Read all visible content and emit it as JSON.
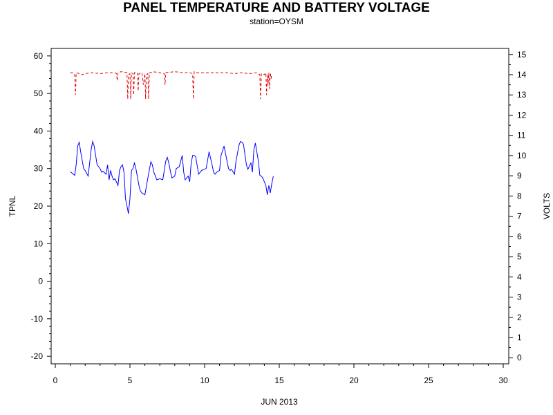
{
  "chart_data": {
    "type": "line",
    "title": "PANEL TEMPERATURE AND BATTERY VOLTAGE",
    "subtitle": "station=OYSM",
    "xlabel": "JUN 2013",
    "ylabel": "TPNL",
    "y2label": "VOLTS",
    "xlim": [
      0,
      30
    ],
    "ylim": [
      -22,
      62
    ],
    "y2lim": [
      -0.3,
      15.3
    ],
    "xticks": [
      "0",
      "5",
      "10",
      "15",
      "20",
      "25",
      "30"
    ],
    "yticks": [
      "-20",
      "-10",
      "0",
      "10",
      "20",
      "30",
      "40",
      "50",
      "60"
    ],
    "y2ticks": [
      "0",
      "1",
      "2",
      "3",
      "4",
      "5",
      "6",
      "7",
      "8",
      "9",
      "10",
      "11",
      "12",
      "13",
      "14",
      "15"
    ],
    "grid": false,
    "legend": "none",
    "series": [
      {
        "axis": "left",
        "color": "#0000ff",
        "dash": "solid",
        "x": [
          1.0,
          1.3,
          1.4,
          1.5,
          1.6,
          1.7,
          1.9,
          2.0,
          2.2,
          2.3,
          2.4,
          2.5,
          2.6,
          2.8,
          2.9,
          3.0,
          3.1,
          3.2,
          3.4,
          3.5,
          3.6,
          3.7,
          3.8,
          3.9,
          4.0,
          4.2,
          4.3,
          4.4,
          4.5,
          4.6,
          4.7,
          4.8,
          4.9,
          5.0,
          5.1,
          5.2,
          5.3,
          5.4,
          5.6,
          5.7,
          5.8,
          6.0,
          6.2,
          6.4,
          6.5,
          6.6,
          6.8,
          7.0,
          7.2,
          7.4,
          7.5,
          7.6,
          7.8,
          8.0,
          8.1,
          8.3,
          8.5,
          8.6,
          8.7,
          8.9,
          9.0,
          9.1,
          9.2,
          9.3,
          9.4,
          9.6,
          9.7,
          9.8,
          10.1,
          10.3,
          10.5,
          10.6,
          10.7,
          10.8,
          11.0,
          11.1,
          11.3,
          11.5,
          11.6,
          11.7,
          11.8,
          12.0,
          12.1,
          12.3,
          12.4,
          12.5,
          12.6,
          12.8,
          12.9,
          13.1,
          13.2,
          13.3,
          13.4,
          13.6,
          13.7,
          13.8,
          13.9,
          14.1,
          14.2,
          14.3,
          14.4,
          14.5,
          14.6
        ],
        "values": [
          29.2,
          28.2,
          31.0,
          36.0,
          37.0,
          34.5,
          30.0,
          29.5,
          28.0,
          31.5,
          35.0,
          37.2,
          36.0,
          31.0,
          30.5,
          30.0,
          29.0,
          29.3,
          28.5,
          31.0,
          27.0,
          29.5,
          28.0,
          27.0,
          27.3,
          25.5,
          29.5,
          30.5,
          31.0,
          29.0,
          22.0,
          20.0,
          18.0,
          22.0,
          29.5,
          30.0,
          31.5,
          30.0,
          25.5,
          24.0,
          23.5,
          23.0,
          27.5,
          31.8,
          31.0,
          29.0,
          27.0,
          27.3,
          27.0,
          32.0,
          33.0,
          31.5,
          27.5,
          28.0,
          30.0,
          30.5,
          33.5,
          29.0,
          27.0,
          28.0,
          26.5,
          31.5,
          33.5,
          33.5,
          33.2,
          28.5,
          29.0,
          29.5,
          30.0,
          34.5,
          31.0,
          29.0,
          28.5,
          29.0,
          29.5,
          33.5,
          36.0,
          32.0,
          30.0,
          29.5,
          29.8,
          28.5,
          32.0,
          36.2,
          37.2,
          37.0,
          36.5,
          31.0,
          29.8,
          31.5,
          29.0,
          35.0,
          36.8,
          32.0,
          28.2,
          28.0,
          27.5,
          25.5,
          23.0,
          25.5,
          23.5,
          26.0,
          28.0
        ]
      },
      {
        "axis": "right",
        "color": "#dd0000",
        "dash": "4,3",
        "x": [
          1.0,
          1.2,
          1.3,
          1.35,
          1.4,
          1.8,
          2.0,
          2.5,
          3.0,
          3.5,
          4.0,
          4.1,
          4.15,
          4.2,
          4.4,
          4.8,
          4.85,
          4.9,
          5.0,
          5.05,
          5.1,
          5.2,
          5.25,
          5.3,
          5.5,
          5.55,
          5.6,
          5.8,
          5.9,
          6.0,
          6.05,
          6.1,
          6.2,
          6.25,
          6.3,
          6.4,
          6.5,
          7.0,
          7.3,
          7.35,
          7.4,
          8.0,
          8.5,
          9.0,
          9.2,
          9.25,
          9.3,
          9.5,
          10.0,
          10.5,
          11.0,
          11.5,
          12.0,
          12.5,
          13.0,
          13.5,
          13.7,
          13.75,
          13.8,
          14.0,
          14.1,
          14.15,
          14.2,
          14.25,
          14.3,
          14.35,
          14.4,
          14.45,
          14.5
        ],
        "values": [
          14.1,
          14.1,
          14.0,
          13.0,
          14.1,
          14.0,
          14.05,
          14.1,
          14.05,
          14.1,
          14.1,
          14.05,
          13.7,
          14.1,
          14.15,
          14.1,
          12.8,
          14.0,
          14.05,
          12.8,
          14.1,
          14.05,
          13.0,
          14.1,
          14.1,
          13.2,
          14.05,
          14.1,
          13.5,
          14.05,
          12.8,
          14.0,
          14.05,
          12.8,
          14.1,
          14.1,
          14.15,
          14.1,
          14.05,
          13.5,
          14.1,
          14.15,
          14.1,
          14.1,
          14.05,
          12.8,
          14.15,
          14.1,
          14.1,
          14.1,
          14.1,
          14.1,
          14.05,
          14.1,
          14.05,
          14.1,
          14.0,
          12.8,
          14.05,
          14.0,
          14.1,
          13.0,
          14.0,
          13.5,
          14.1,
          13.3,
          14.1,
          13.8,
          14.0
        ]
      }
    ]
  }
}
